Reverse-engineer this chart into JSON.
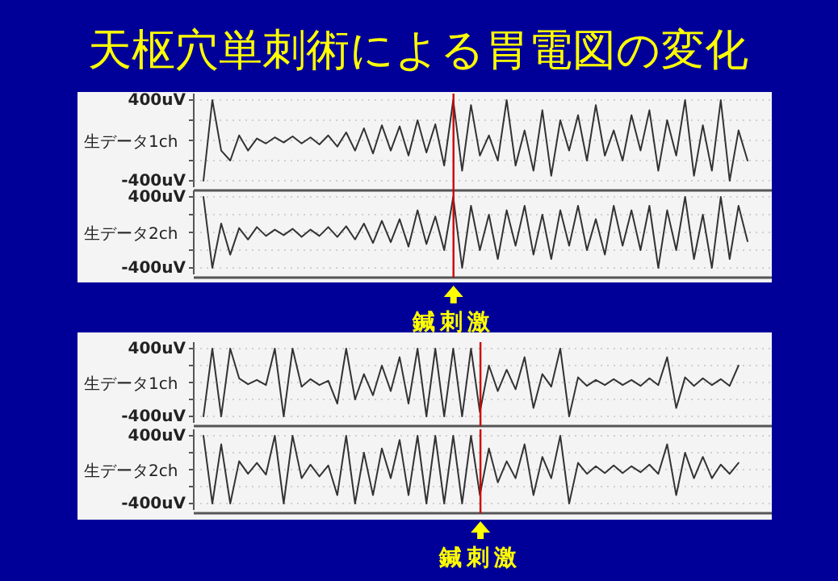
{
  "chart_data": [
    {
      "type": "line",
      "title": "天枢穴単刺術による胃電図の変化",
      "ylabel": "生データ1ch",
      "categories": [
        null,
        null,
        null,
        null,
        null,
        null,
        null,
        null,
        null,
        null,
        null,
        null,
        null,
        null,
        null,
        null,
        null,
        null,
        null,
        null,
        null,
        null,
        null,
        null,
        null,
        null,
        null,
        null,
        null,
        null,
        null,
        null,
        null,
        null,
        null,
        null,
        null,
        null,
        null,
        null,
        null,
        null,
        null,
        null,
        null,
        null,
        null,
        null,
        null,
        null,
        null,
        null,
        null,
        null,
        null,
        null,
        null,
        null,
        null,
        null,
        null,
        null,
        null,
        null
      ],
      "series": [
        {
          "color": "#333333",
          "values": [
            -400,
            400,
            -100,
            -200,
            50,
            -100,
            20,
            -30,
            30,
            -20,
            40,
            -30,
            30,
            -40,
            50,
            -60,
            80,
            -100,
            120,
            -130,
            150,
            -100,
            140,
            -150,
            200,
            -120,
            160,
            -250,
            400,
            -300,
            350,
            -150,
            50,
            -200,
            400,
            -250,
            100,
            -300,
            300,
            -350,
            200,
            -100,
            250,
            -200,
            350,
            -150,
            100,
            -200,
            250,
            -100,
            300,
            -300,
            200,
            -150,
            400,
            -350,
            150,
            -300,
            400,
            -400,
            100,
            -200,
            null,
            null
          ]
        }
      ],
      "ylim": [
        -400,
        400
      ],
      "yticks": [
        {
          "value": -400,
          "label": "-400uV"
        },
        {
          "value": -200,
          "label": null
        },
        {
          "value": 0,
          "label": null
        },
        {
          "value": 200,
          "label": null
        },
        {
          "value": 400,
          "label": "400uV"
        }
      ],
      "grid": "y",
      "tick_labels": "y"
    },
    {
      "type": "line",
      "ylabel": "生データ2ch",
      "categories": [
        null,
        null,
        null,
        null,
        null,
        null,
        null,
        null,
        null,
        null,
        null,
        null,
        null,
        null,
        null,
        null,
        null,
        null,
        null,
        null,
        null,
        null,
        null,
        null,
        null,
        null,
        null,
        null,
        null,
        null,
        null,
        null,
        null,
        null,
        null,
        null,
        null,
        null,
        null,
        null,
        null,
        null,
        null,
        null,
        null,
        null,
        null,
        null,
        null,
        null,
        null,
        null,
        null,
        null,
        null,
        null,
        null,
        null,
        null,
        null,
        null,
        null,
        null,
        null
      ],
      "series": [
        {
          "color": "#333333",
          "values": [
            400,
            -400,
            100,
            -250,
            50,
            -80,
            60,
            -40,
            30,
            -30,
            40,
            -50,
            30,
            -40,
            60,
            -50,
            70,
            -80,
            100,
            -120,
            130,
            -110,
            150,
            -160,
            250,
            -130,
            180,
            -200,
            400,
            -400,
            300,
            -200,
            200,
            -300,
            250,
            -150,
            300,
            -250,
            200,
            -300,
            250,
            -150,
            300,
            -200,
            150,
            -250,
            300,
            -150,
            250,
            -200,
            300,
            -400,
            250,
            -200,
            400,
            -300,
            200,
            -400,
            400,
            -300,
            300,
            -100,
            null,
            null
          ]
        }
      ],
      "ylim": [
        -400,
        400
      ],
      "yticks": [
        {
          "value": -400,
          "label": "-400uV"
        },
        {
          "value": -200,
          "label": null
        },
        {
          "value": 0,
          "label": null
        },
        {
          "value": 200,
          "label": null
        },
        {
          "value": 400,
          "label": "400uV"
        }
      ],
      "grid": "y",
      "tick_labels": "y",
      "annotations": [
        "鍼刺激"
      ]
    },
    {
      "type": "line",
      "ylabel": "生データ1ch",
      "categories": [
        null,
        null,
        null,
        null,
        null,
        null,
        null,
        null,
        null,
        null,
        null,
        null,
        null,
        null,
        null,
        null,
        null,
        null,
        null,
        null,
        null,
        null,
        null,
        null,
        null,
        null,
        null,
        null,
        null,
        null,
        null,
        null,
        null,
        null,
        null,
        null,
        null,
        null,
        null,
        null,
        null,
        null,
        null,
        null,
        null,
        null,
        null,
        null,
        null,
        null,
        null,
        null,
        null,
        null,
        null,
        null,
        null,
        null,
        null,
        null,
        null,
        null,
        null,
        null
      ],
      "series": [
        {
          "color": "#333333",
          "values": [
            -400,
            400,
            -400,
            400,
            50,
            -20,
            30,
            -30,
            400,
            -400,
            400,
            -50,
            40,
            -30,
            20,
            -250,
            400,
            -200,
            100,
            -150,
            200,
            -100,
            300,
            -250,
            400,
            -400,
            400,
            -400,
            400,
            -400,
            400,
            -350,
            200,
            -100,
            150,
            -80,
            300,
            -300,
            100,
            -50,
            400,
            -400,
            60,
            -40,
            30,
            -30,
            40,
            -30,
            30,
            -40,
            50,
            -30,
            300,
            -300,
            60,
            -40,
            50,
            -30,
            40,
            -40,
            200,
            null,
            null,
            null
          ]
        }
      ],
      "ylim": [
        -400,
        400
      ],
      "yticks": [
        {
          "value": -400,
          "label": "-400uV"
        },
        {
          "value": -200,
          "label": null
        },
        {
          "value": 0,
          "label": null
        },
        {
          "value": 200,
          "label": null
        },
        {
          "value": 400,
          "label": "400uV"
        }
      ],
      "grid": "y",
      "tick_labels": "y"
    },
    {
      "type": "line",
      "ylabel": "生データ2ch",
      "categories": [
        null,
        null,
        null,
        null,
        null,
        null,
        null,
        null,
        null,
        null,
        null,
        null,
        null,
        null,
        null,
        null,
        null,
        null,
        null,
        null,
        null,
        null,
        null,
        null,
        null,
        null,
        null,
        null,
        null,
        null,
        null,
        null,
        null,
        null,
        null,
        null,
        null,
        null,
        null,
        null,
        null,
        null,
        null,
        null,
        null,
        null,
        null,
        null,
        null,
        null,
        null,
        null,
        null,
        null,
        null,
        null,
        null,
        null,
        null,
        null,
        null,
        null,
        null,
        null
      ],
      "series": [
        {
          "color": "#333333",
          "values": [
            400,
            -400,
            300,
            -400,
            100,
            -50,
            80,
            -60,
            400,
            -400,
            400,
            -100,
            60,
            -80,
            50,
            -300,
            400,
            -400,
            200,
            -300,
            250,
            -100,
            350,
            -300,
            400,
            -400,
            400,
            -400,
            400,
            -400,
            400,
            -300,
            250,
            -150,
            100,
            -100,
            300,
            -300,
            150,
            -100,
            400,
            -400,
            80,
            -50,
            40,
            -40,
            50,
            -40,
            40,
            -30,
            60,
            -50,
            300,
            -300,
            200,
            -100,
            150,
            -100,
            60,
            -50,
            80,
            null,
            null,
            null
          ]
        }
      ],
      "ylim": [
        -400,
        400
      ],
      "yticks": [
        {
          "value": -400,
          "label": "-400uV"
        },
        {
          "value": -200,
          "label": null
        },
        {
          "value": 0,
          "label": null
        },
        {
          "value": 200,
          "label": null
        },
        {
          "value": 400,
          "label": "400uV"
        }
      ],
      "grid": "y",
      "tick_labels": "y",
      "annotations": [
        "鍼刺激"
      ]
    }
  ]
}
